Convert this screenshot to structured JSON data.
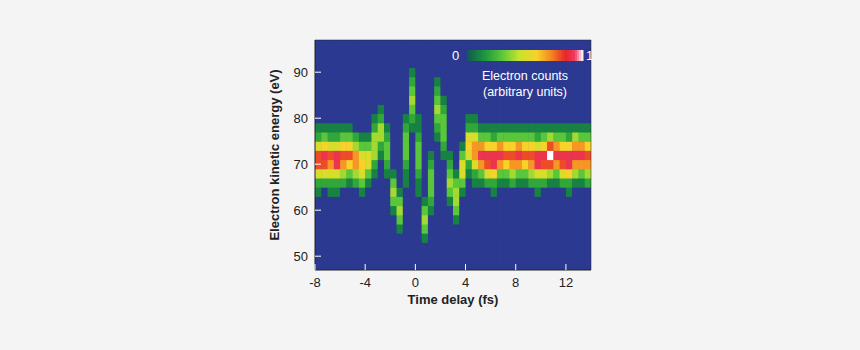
{
  "chart_data": {
    "type": "heatmap",
    "x_label": "Time delay (fs)",
    "y_label": "Electron kinetic energy (eV)",
    "xlim": [
      -8,
      14
    ],
    "ylim": [
      47,
      97
    ],
    "xticks": [
      -8,
      -4,
      0,
      4,
      8,
      12
    ],
    "yticks": [
      50,
      60,
      70,
      80,
      90
    ],
    "colorbar_lim": [
      0,
      1
    ],
    "colorbar_ticks": [
      0,
      1
    ],
    "colorbar_label": [
      "Electron counts",
      "(arbitrary units)"
    ],
    "x": [
      -7.75,
      -7.25,
      -6.75,
      -6.25,
      -5.75,
      -5.25,
      -4.75,
      -4.25,
      -3.75,
      -3.25,
      -2.75,
      -2.25,
      -1.75,
      -1.25,
      -0.75,
      -0.25,
      0.25,
      0.75,
      1.25,
      1.75,
      2.25,
      2.75,
      3.25,
      3.75,
      4.25,
      4.75,
      5.25,
      5.75,
      6.25,
      6.75,
      7.25,
      7.75,
      8.25,
      8.75,
      9.25,
      9.75,
      10.25,
      10.75,
      11.25,
      11.75,
      12.25,
      12.75,
      13.25,
      13.75
    ],
    "y": [
      48,
      50,
      52,
      54,
      56,
      58,
      60,
      62,
      64,
      66,
      68,
      70,
      72,
      74,
      76,
      78,
      80,
      82,
      84,
      86,
      88,
      90,
      92,
      94,
      96
    ],
    "values": [
      [
        0,
        0,
        0,
        0,
        0,
        0,
        0,
        0,
        0.1,
        0.2,
        0.5,
        0.8,
        0.8,
        0.5,
        0.2,
        0.1,
        0,
        0,
        0,
        0,
        0,
        0,
        0,
        0,
        0
      ],
      [
        0,
        0,
        0,
        0,
        0,
        0,
        0,
        0,
        0,
        0.2,
        0.5,
        0.8,
        0.9,
        0.6,
        0.3,
        0.1,
        0,
        0,
        0,
        0,
        0,
        0,
        0,
        0,
        0
      ],
      [
        0,
        0,
        0,
        0,
        0,
        0,
        0,
        0,
        0.1,
        0.2,
        0.5,
        0.7,
        0.8,
        0.5,
        0.2,
        0.1,
        0,
        0,
        0,
        0,
        0,
        0,
        0,
        0,
        0
      ],
      [
        0,
        0,
        0,
        0,
        0,
        0,
        0,
        0,
        0.1,
        0.2,
        0.5,
        0.9,
        0.9,
        0.5,
        0.2,
        0.1,
        0,
        0,
        0,
        0,
        0,
        0,
        0,
        0,
        0
      ],
      [
        0,
        0,
        0,
        0,
        0,
        0,
        0,
        0,
        0,
        0.2,
        0.4,
        0.7,
        0.8,
        0.6,
        0.3,
        0.1,
        0,
        0,
        0,
        0,
        0,
        0,
        0,
        0,
        0
      ],
      [
        0,
        0,
        0,
        0,
        0,
        0,
        0,
        0,
        0,
        0.1,
        0.3,
        0.6,
        0.8,
        0.6,
        0.3,
        0.1,
        0,
        0,
        0,
        0,
        0,
        0,
        0,
        0,
        0
      ],
      [
        0,
        0,
        0,
        0,
        0,
        0,
        0,
        0,
        0,
        0.2,
        0.4,
        0.7,
        0.7,
        0.4,
        0.2,
        0,
        0,
        0,
        0,
        0,
        0,
        0,
        0,
        0,
        0
      ],
      [
        0,
        0,
        0,
        0,
        0,
        0,
        0,
        0,
        0.1,
        0.3,
        0.5,
        0.6,
        0.5,
        0.3,
        0.1,
        0,
        0,
        0,
        0,
        0,
        0,
        0,
        0,
        0,
        0
      ],
      [
        0,
        0,
        0,
        0,
        0,
        0,
        0,
        0,
        0,
        0.1,
        0.3,
        0.5,
        0.5,
        0.3,
        0.1,
        0,
        0,
        0,
        0,
        0,
        0,
        0,
        0,
        0,
        0
      ],
      [
        0,
        0,
        0,
        0,
        0,
        0,
        0,
        0,
        0,
        0,
        0.1,
        0.2,
        0.4,
        0.4,
        0.4,
        0.2,
        0.1,
        0,
        0,
        0,
        0,
        0,
        0,
        0,
        0
      ],
      [
        0,
        0,
        0,
        0,
        0,
        0,
        0,
        0,
        0,
        0,
        0,
        0,
        0.1,
        0.2,
        0.4,
        0.4,
        0.2,
        0.1,
        0,
        0,
        0,
        0,
        0,
        0,
        0
      ],
      [
        0,
        0,
        0,
        0,
        0,
        0,
        0,
        0,
        0,
        0,
        0.1,
        0.2,
        0.3,
        0.3,
        0.2,
        0.1,
        0,
        0,
        0,
        0,
        0,
        0,
        0,
        0,
        0
      ],
      [
        0,
        0,
        0,
        0,
        0,
        0,
        0.1,
        0.3,
        0.4,
        0.3,
        0.1,
        0,
        0,
        0,
        0,
        0,
        0,
        0,
        0,
        0,
        0,
        0,
        0,
        0,
        0
      ],
      [
        0,
        0,
        0,
        0,
        0.1,
        0.3,
        0.4,
        0.3,
        0.1,
        0,
        0,
        0,
        0,
        0,
        0,
        0,
        0,
        0,
        0,
        0,
        0,
        0,
        0,
        0,
        0
      ],
      [
        0,
        0,
        0,
        0,
        0,
        0,
        0,
        0,
        0,
        0.1,
        0.1,
        0.2,
        0.3,
        0.3,
        0.3,
        0.2,
        0.1,
        0,
        0,
        0,
        0,
        0,
        0,
        0,
        0
      ],
      [
        0,
        0,
        0,
        0,
        0,
        0,
        0,
        0,
        0,
        0,
        0,
        0,
        0,
        0,
        0,
        0.1,
        0.2,
        0.3,
        0.4,
        0.3,
        0.2,
        0.1,
        0,
        0,
        0
      ],
      [
        0,
        0,
        0,
        0,
        0,
        0,
        0,
        0,
        0.1,
        0.1,
        0.2,
        0.3,
        0.3,
        0.3,
        0.2,
        0.1,
        0.1,
        0,
        0,
        0,
        0,
        0,
        0,
        0,
        0
      ],
      [
        0,
        0,
        0,
        0.1,
        0.3,
        0.4,
        0.3,
        0.1,
        0,
        0,
        0,
        0,
        0,
        0,
        0,
        0,
        0,
        0,
        0,
        0,
        0,
        0,
        0,
        0,
        0
      ],
      [
        0,
        0,
        0,
        0,
        0,
        0,
        0.1,
        0.2,
        0.3,
        0.3,
        0.3,
        0.2,
        0.1,
        0,
        0,
        0,
        0,
        0,
        0,
        0,
        0,
        0,
        0,
        0,
        0
      ],
      [
        0,
        0,
        0,
        0,
        0,
        0,
        0,
        0,
        0,
        0,
        0,
        0,
        0,
        0,
        0.1,
        0.2,
        0.3,
        0.4,
        0.3,
        0.2,
        0.1,
        0,
        0,
        0,
        0
      ],
      [
        0,
        0,
        0,
        0,
        0,
        0,
        0,
        0,
        0,
        0,
        0,
        0,
        0.1,
        0.2,
        0.3,
        0.3,
        0.3,
        0.2,
        0.1,
        0,
        0,
        0,
        0,
        0,
        0
      ],
      [
        0,
        0,
        0,
        0,
        0,
        0,
        0,
        0.1,
        0.3,
        0.4,
        0.3,
        0.2,
        0.1,
        0,
        0,
        0,
        0,
        0,
        0,
        0,
        0,
        0,
        0,
        0,
        0
      ],
      [
        0,
        0,
        0,
        0,
        0,
        0.1,
        0.3,
        0.4,
        0.4,
        0.3,
        0.1,
        0,
        0,
        0,
        0,
        0,
        0,
        0,
        0,
        0,
        0,
        0,
        0,
        0,
        0
      ],
      [
        0,
        0,
        0,
        0,
        0,
        0,
        0,
        0,
        0.1,
        0.3,
        0.5,
        0.5,
        0.3,
        0.1,
        0,
        0,
        0,
        0,
        0,
        0,
        0,
        0,
        0,
        0,
        0
      ],
      [
        0,
        0,
        0,
        0,
        0,
        0,
        0,
        0,
        0,
        0,
        0.1,
        0.2,
        0.5,
        0.6,
        0.5,
        0.2,
        0.1,
        0,
        0,
        0,
        0,
        0,
        0,
        0,
        0
      ],
      [
        0,
        0,
        0,
        0,
        0,
        0,
        0,
        0,
        0,
        0.1,
        0.2,
        0.5,
        0.7,
        0.7,
        0.5,
        0.2,
        0.1,
        0,
        0,
        0,
        0,
        0,
        0,
        0,
        0
      ],
      [
        0,
        0,
        0,
        0,
        0,
        0,
        0,
        0,
        0,
        0.1,
        0.3,
        0.7,
        0.9,
        0.7,
        0.3,
        0.1,
        0,
        0,
        0,
        0,
        0,
        0,
        0,
        0,
        0
      ],
      [
        0,
        0,
        0,
        0,
        0,
        0,
        0,
        0,
        0,
        0.2,
        0.5,
        0.8,
        0.9,
        0.6,
        0.3,
        0.1,
        0,
        0,
        0,
        0,
        0,
        0,
        0,
        0,
        0
      ],
      [
        0,
        0,
        0,
        0,
        0,
        0,
        0,
        0,
        0.1,
        0.2,
        0.6,
        0.9,
        0.9,
        0.6,
        0.2,
        0.1,
        0,
        0,
        0,
        0,
        0,
        0,
        0,
        0,
        0
      ],
      [
        0,
        0,
        0,
        0,
        0,
        0,
        0,
        0,
        0,
        0.1,
        0.3,
        0.7,
        0.9,
        0.7,
        0.3,
        0.1,
        0,
        0,
        0,
        0,
        0,
        0,
        0,
        0,
        0
      ],
      [
        0,
        0,
        0,
        0,
        0,
        0,
        0,
        0,
        0,
        0.1,
        0.3,
        0.6,
        0.8,
        0.6,
        0.3,
        0.1,
        0,
        0,
        0,
        0,
        0,
        0,
        0,
        0,
        0
      ],
      [
        0,
        0,
        0,
        0,
        0,
        0,
        0,
        0,
        0,
        0.2,
        0.4,
        0.7,
        0.8,
        0.6,
        0.3,
        0.1,
        0,
        0,
        0,
        0,
        0,
        0,
        0,
        0,
        0
      ],
      [
        0,
        0,
        0,
        0,
        0,
        0,
        0,
        0,
        0,
        0.1,
        0.3,
        0.7,
        0.9,
        0.7,
        0.3,
        0.1,
        0,
        0,
        0,
        0,
        0,
        0,
        0,
        0,
        0
      ],
      [
        0,
        0,
        0,
        0,
        0,
        0,
        0,
        0,
        0,
        0.1,
        0.3,
        0.6,
        0.8,
        0.6,
        0.3,
        0.1,
        0,
        0,
        0,
        0,
        0,
        0,
        0,
        0,
        0
      ],
      [
        0,
        0,
        0,
        0,
        0,
        0,
        0,
        0,
        0,
        0.2,
        0.4,
        0.7,
        0.8,
        0.6,
        0.3,
        0.1,
        0,
        0,
        0,
        0,
        0,
        0,
        0,
        0,
        0
      ],
      [
        0,
        0,
        0,
        0,
        0,
        0,
        0,
        0,
        0.1,
        0.2,
        0.5,
        0.9,
        0.9,
        0.5,
        0.2,
        0.1,
        0,
        0,
        0,
        0,
        0,
        0,
        0,
        0,
        0
      ],
      [
        0,
        0,
        0,
        0,
        0,
        0,
        0,
        0,
        0,
        0.2,
        0.5,
        0.8,
        0.9,
        0.6,
        0.3,
        0.1,
        0,
        0,
        0,
        0,
        0,
        0,
        0,
        0,
        0
      ],
      [
        0,
        0,
        0,
        0,
        0,
        0,
        0,
        0,
        0,
        0.1,
        0.4,
        0.8,
        1,
        0.8,
        0.4,
        0.1,
        0,
        0,
        0,
        0,
        0,
        0,
        0,
        0,
        0
      ],
      [
        0,
        0,
        0,
        0,
        0,
        0,
        0,
        0,
        0,
        0.1,
        0.3,
        0.7,
        0.9,
        0.7,
        0.3,
        0.1,
        0,
        0,
        0,
        0,
        0,
        0,
        0,
        0,
        0
      ],
      [
        0,
        0,
        0,
        0,
        0,
        0,
        0,
        0,
        0,
        0.2,
        0.5,
        0.8,
        0.9,
        0.6,
        0.3,
        0.1,
        0,
        0,
        0,
        0,
        0,
        0,
        0,
        0,
        0
      ],
      [
        0,
        0,
        0,
        0,
        0,
        0,
        0,
        0,
        0.1,
        0.2,
        0.6,
        0.9,
        0.9,
        0.6,
        0.2,
        0.1,
        0,
        0,
        0,
        0,
        0,
        0,
        0,
        0,
        0
      ],
      [
        0,
        0,
        0,
        0,
        0,
        0,
        0,
        0,
        0,
        0.1,
        0.4,
        0.7,
        0.9,
        0.7,
        0.4,
        0.1,
        0,
        0,
        0,
        0,
        0,
        0,
        0,
        0,
        0
      ],
      [
        0,
        0,
        0,
        0,
        0,
        0,
        0,
        0,
        0,
        0.1,
        0.3,
        0.7,
        0.9,
        0.7,
        0.3,
        0.1,
        0,
        0,
        0,
        0,
        0,
        0,
        0,
        0,
        0
      ],
      [
        0,
        0,
        0,
        0,
        0,
        0,
        0,
        0,
        0,
        0.2,
        0.4,
        0.7,
        0.8,
        0.6,
        0.3,
        0.1,
        0,
        0,
        0,
        0,
        0,
        0,
        0,
        0,
        0
      ]
    ]
  }
}
